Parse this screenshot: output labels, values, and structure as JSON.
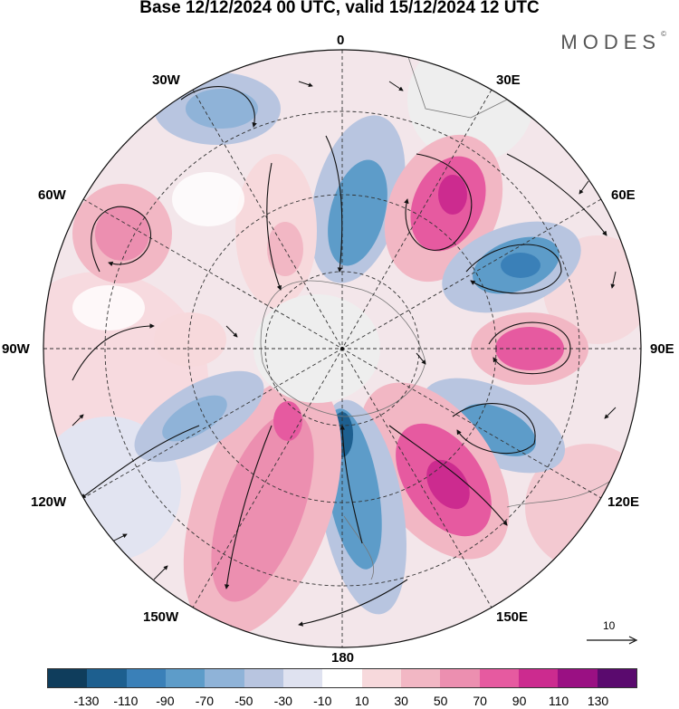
{
  "title": "Base 12/12/2024 00 UTC, valid 15/12/2024 12 UTC",
  "brand": {
    "name": "MODES",
    "mark": "©"
  },
  "longitude_labels": {
    "lon_0": "0",
    "lon_30e": "30E",
    "lon_60e": "60E",
    "lon_90e": "90E",
    "lon_120e": "120E",
    "lon_150e": "150E",
    "lon_180": "180",
    "lon_150w": "150W",
    "lon_120w": "120W",
    "lon_90w": "90W",
    "lon_60w": "60W",
    "lon_30w": "30W"
  },
  "reference_vector": {
    "label": "10"
  },
  "colorbar": {
    "colors": [
      "#0f3d5c",
      "#1d5f8f",
      "#3a80b8",
      "#5d9cc9",
      "#8fb3d8",
      "#b8c5e0",
      "#dfe2f0",
      "#ffffff",
      "#f7d9dc",
      "#f2b7c4",
      "#ec8fb0",
      "#e65aa0",
      "#cc2b8f",
      "#9a1083",
      "#5a0a6e"
    ],
    "tick_labels": [
      "-130",
      "-110",
      "-90",
      "-70",
      "-50",
      "-30",
      "-10",
      "10",
      "30",
      "50",
      "70",
      "90",
      "110",
      "130"
    ]
  }
}
